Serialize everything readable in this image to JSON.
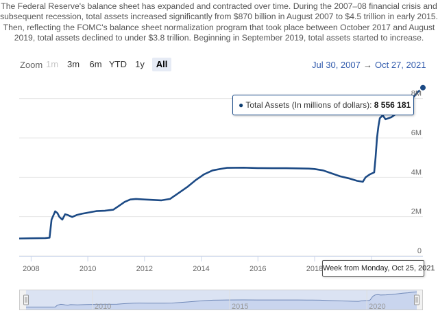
{
  "intro_text": "The Federal Reserve's balance sheet has expanded and contracted over time. During the 2007–08 financial crisis and subsequent recession, total assets increased significantly from $870 billion in August 2007 to $4.5 trillion in early 2015. Then, reflecting the FOMC's balance sheet normalization program that took place between October 2017 and August 2019, total assets declined to under $3.8 trillion. Beginning in September 2019, total assets started to increase.",
  "range_selector": {
    "zoom_label": "Zoom",
    "buttons": [
      {
        "label": "1m",
        "state": "disabled"
      },
      {
        "label": "3m",
        "state": "normal"
      },
      {
        "label": "6m",
        "state": "normal"
      },
      {
        "label": "YTD",
        "state": "normal"
      },
      {
        "label": "1y",
        "state": "normal"
      },
      {
        "label": "All",
        "state": "active"
      }
    ],
    "from_date": "Jul 30, 2007",
    "arrow": "→",
    "to_date": "Oct 27, 2021"
  },
  "tooltip": {
    "series_label": "Total Assets (In millions of dollars): ",
    "value_text": "8 556 181",
    "x_label": "Week from Monday, Oct 25, 2021"
  },
  "colors": {
    "series_line": "#1c4a85",
    "navigator_fill": "#dbe3f3",
    "navigator_line": "#6f88b8",
    "grid": "#e6e6e6",
    "accent_text": "#335cad"
  },
  "chart_data": {
    "type": "line",
    "title": "",
    "xlabel": "",
    "ylabel": "",
    "xlim": [
      2007.58,
      2021.82
    ],
    "ylim": [
      0,
      9000000
    ],
    "y_tick_values": [
      0,
      2000000,
      4000000,
      6000000,
      8000000
    ],
    "y_tick_labels": [
      "0",
      "2M",
      "4M",
      "6M",
      "8M"
    ],
    "x_tick_values": [
      2008,
      2010,
      2012,
      2014,
      2016,
      2018,
      2020
    ],
    "x_tick_labels": [
      "2008",
      "2010",
      "2012",
      "2014",
      "2016",
      "2018",
      "2020"
    ],
    "navigator_tick_values": [
      2010,
      2015,
      2020
    ],
    "navigator_tick_labels": [
      "2010",
      "2015",
      "2020"
    ],
    "grid": true,
    "legend": "none",
    "series": [
      {
        "x": [
          2007.58,
          2008.0,
          2008.5,
          2008.65,
          2008.72,
          2008.85,
          2008.93,
          2009.0,
          2009.1,
          2009.2,
          2009.3,
          2009.45,
          2009.6,
          2009.8,
          2010.0,
          2010.3,
          2010.6,
          2010.9,
          2011.1,
          2011.3,
          2011.5,
          2011.7,
          2012.0,
          2012.3,
          2012.6,
          2012.9,
          2013.2,
          2013.5,
          2013.8,
          2014.1,
          2014.4,
          2014.7,
          2014.9,
          2015.5,
          2016.0,
          2016.5,
          2017.0,
          2017.5,
          2017.8,
          2018.0,
          2018.3,
          2018.6,
          2018.9,
          2019.2,
          2019.5,
          2019.7,
          2019.8,
          2019.95,
          2020.1,
          2020.15,
          2020.2,
          2020.25,
          2020.3,
          2020.4,
          2020.5,
          2020.7,
          2020.9,
          2021.1,
          2021.3,
          2021.5,
          2021.65,
          2021.82
        ],
        "y": [
          890000,
          900000,
          910000,
          930000,
          1850000,
          2270000,
          2180000,
          1980000,
          1850000,
          2120000,
          2080000,
          1980000,
          2080000,
          2150000,
          2200000,
          2280000,
          2300000,
          2350000,
          2550000,
          2750000,
          2870000,
          2900000,
          2870000,
          2850000,
          2830000,
          2900000,
          3200000,
          3500000,
          3850000,
          4150000,
          4350000,
          4430000,
          4480000,
          4490000,
          4470000,
          4460000,
          4460000,
          4450000,
          4440000,
          4420000,
          4350000,
          4200000,
          4050000,
          3950000,
          3820000,
          3770000,
          4000000,
          4150000,
          4250000,
          5000000,
          6000000,
          6600000,
          7000000,
          7150000,
          6950000,
          7050000,
          7250000,
          7550000,
          7850000,
          8100000,
          8350000,
          8556181
        ]
      }
    ]
  }
}
